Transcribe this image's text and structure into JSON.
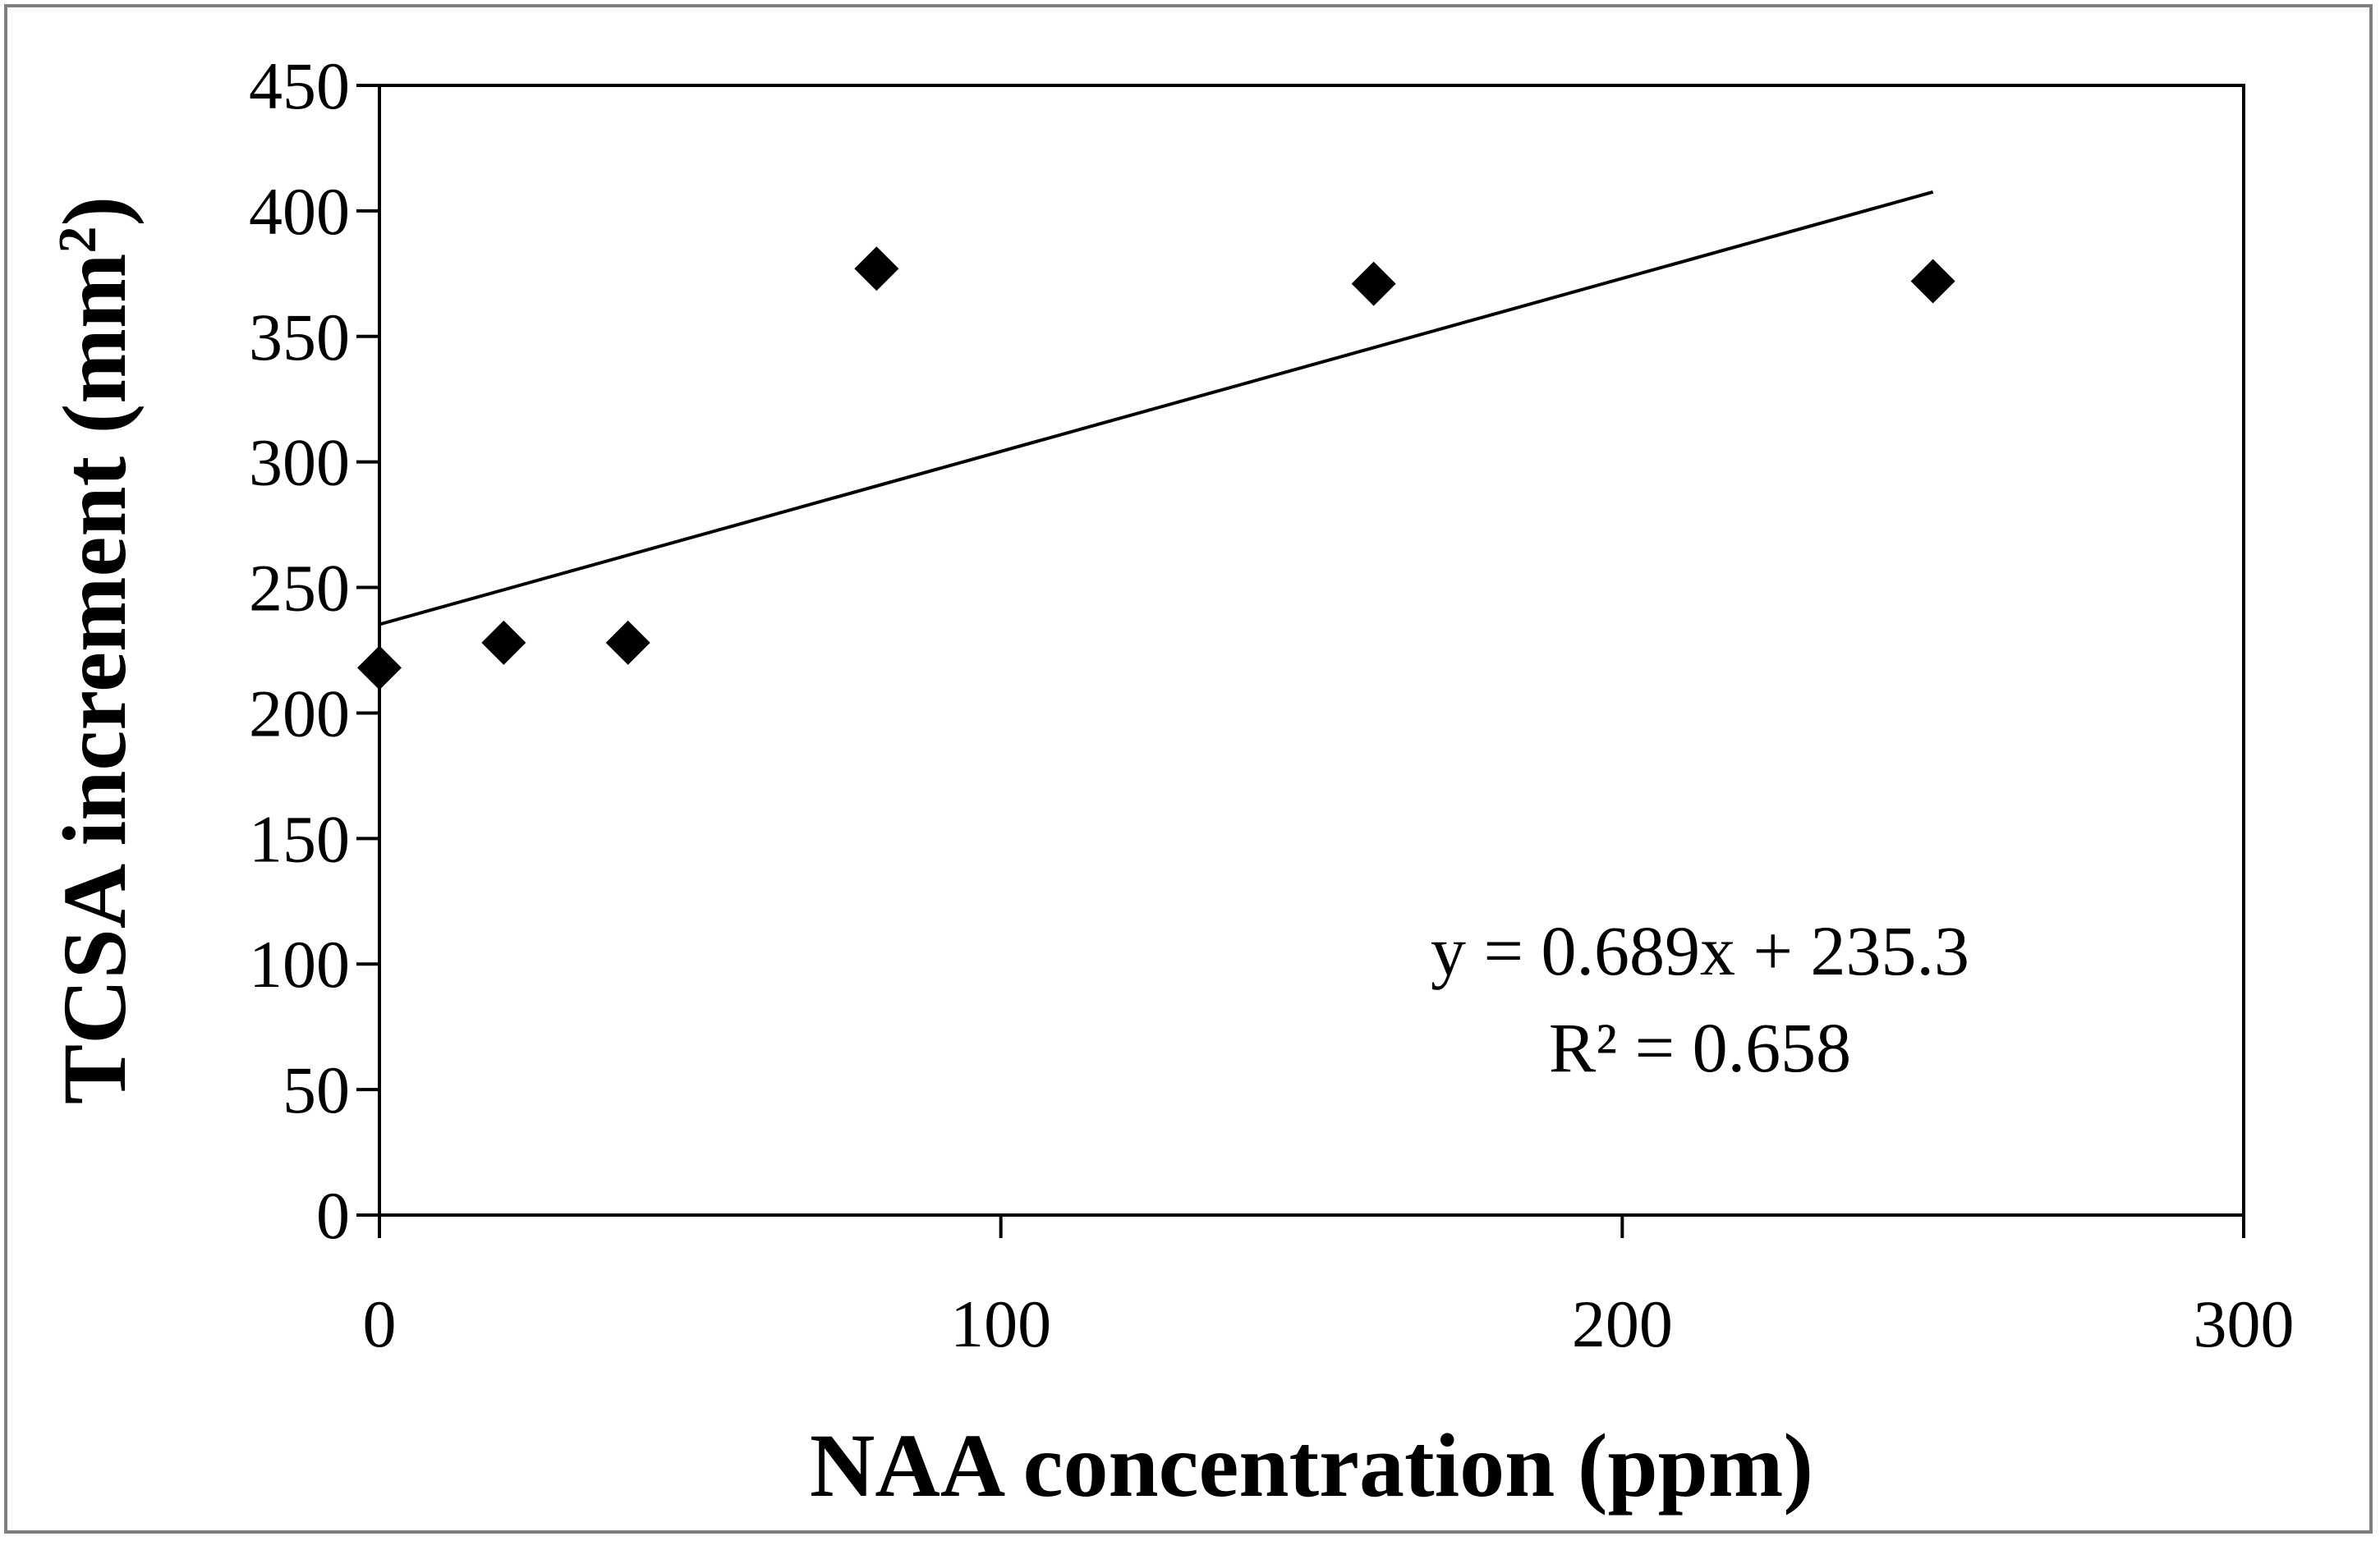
{
  "chart_data": {
    "type": "scatter",
    "title": "",
    "xlabel": "NAA concentration (ppm)",
    "ylabel_main": "TCSA increment (mm",
    "ylabel_sup": "2",
    "ylabel_close": ")",
    "xlim": [
      0,
      300
    ],
    "ylim": [
      0,
      450
    ],
    "x_ticks": [
      0,
      100,
      200,
      300
    ],
    "y_ticks": [
      0,
      50,
      100,
      150,
      200,
      250,
      300,
      350,
      400,
      450
    ],
    "x_tick_labels": [
      "0",
      "100",
      "200",
      "300"
    ],
    "y_tick_labels": [
      "0",
      "50",
      "100",
      "150",
      "200",
      "250",
      "300",
      "350",
      "400",
      "450"
    ],
    "series": [
      {
        "name": "TCSA increment",
        "marker": "diamond",
        "color": "#000000",
        "x": [
          0,
          20,
          40,
          80,
          160,
          250
        ],
        "y": [
          218,
          228,
          228,
          377,
          371,
          372
        ]
      }
    ],
    "trendline": {
      "type": "linear",
      "slope": 0.689,
      "intercept": 235.3,
      "x_range": [
        0,
        250
      ],
      "color": "#000000"
    },
    "annotations": {
      "equation": "y = 0.689x + 235.3",
      "r_squared": "R² = 0.658"
    },
    "grid": false
  }
}
